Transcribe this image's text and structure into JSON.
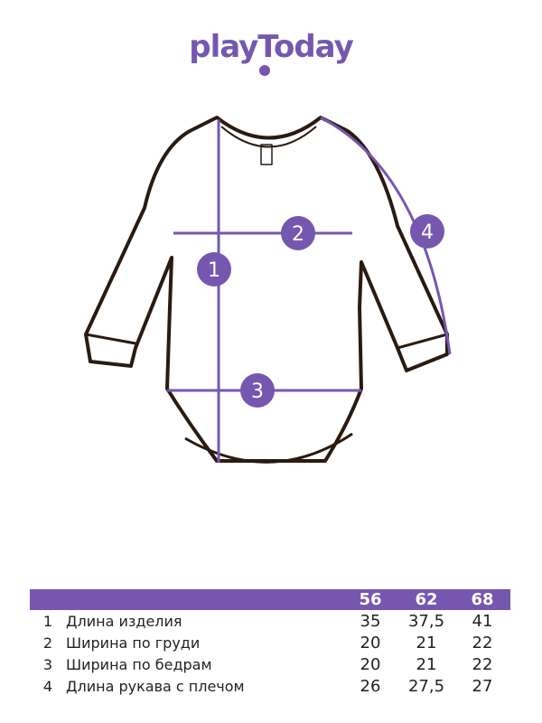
{
  "brand": {
    "logo_text": "playToday",
    "color": "#7557b0"
  },
  "diagram": {
    "markers": [
      "1",
      "2",
      "3",
      "4"
    ],
    "accent": "#7557b0"
  },
  "size_table": {
    "headers": [
      "",
      "",
      "56",
      "62",
      "68"
    ],
    "rows": [
      {
        "num": "1",
        "name": "Длина изделия",
        "values": [
          "35",
          "37,5",
          "41"
        ]
      },
      {
        "num": "2",
        "name": "Ширина по груди",
        "values": [
          "20",
          "21",
          "22"
        ]
      },
      {
        "num": "3",
        "name": "Ширина по бедрам",
        "values": [
          "20",
          "21",
          "22"
        ]
      },
      {
        "num": "4",
        "name": "Длина рукава с плечом",
        "values": [
          "26",
          "27,5",
          "27"
        ]
      }
    ]
  }
}
